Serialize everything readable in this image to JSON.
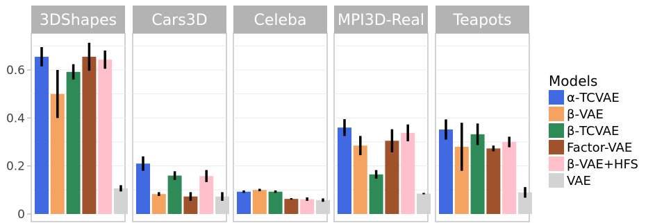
{
  "chart_data": {
    "type": "bar",
    "facets": [
      "3DShapes",
      "Cars3D",
      "Celeba",
      "MPI3D-Real",
      "Teapots"
    ],
    "legend_title": "Models",
    "legend_position": "right",
    "grid": true,
    "ylim": [
      0,
      0.72
    ],
    "yticks": [
      0,
      0.2,
      0.4,
      0.6
    ],
    "ytick_labels": [
      "0",
      "0.2",
      "0.4",
      "0.6"
    ],
    "series": [
      {
        "name": "α-TCVAE",
        "color": "#4169E1",
        "values": [
          0.655,
          0.21,
          0.093,
          0.36,
          0.352
        ],
        "errors": [
          0.04,
          0.03,
          0.005,
          0.035,
          0.042
        ]
      },
      {
        "name": "β-VAE",
        "color": "#F4A460",
        "values": [
          0.5,
          0.083,
          0.1,
          0.285,
          0.28
        ],
        "errors": [
          0.1,
          0.008,
          0.005,
          0.04,
          0.1
        ]
      },
      {
        "name": "β-TCVAE",
        "color": "#2E8B57",
        "values": [
          0.592,
          0.16,
          0.093,
          0.165,
          0.332
        ],
        "errors": [
          0.032,
          0.018,
          0.005,
          0.018,
          0.045
        ]
      },
      {
        "name": "Factor-VAE",
        "color": "#A0522D",
        "values": [
          0.655,
          0.073,
          0.063,
          0.305,
          0.273
        ],
        "errors": [
          0.058,
          0.018,
          0.003,
          0.048,
          0.012
        ]
      },
      {
        "name": "β-VAE+HFS",
        "color": "#FFC0CB",
        "values": [
          0.643,
          0.158,
          0.062,
          0.338,
          0.3
        ],
        "errors": [
          0.038,
          0.025,
          0.007,
          0.035,
          0.022
        ]
      },
      {
        "name": "VAE",
        "color": "#D3D3D3",
        "values": [
          0.107,
          0.073,
          0.058,
          0.085,
          0.09
        ],
        "errors": [
          0.013,
          0.018,
          0.007,
          0.003,
          0.022
        ]
      }
    ]
  }
}
